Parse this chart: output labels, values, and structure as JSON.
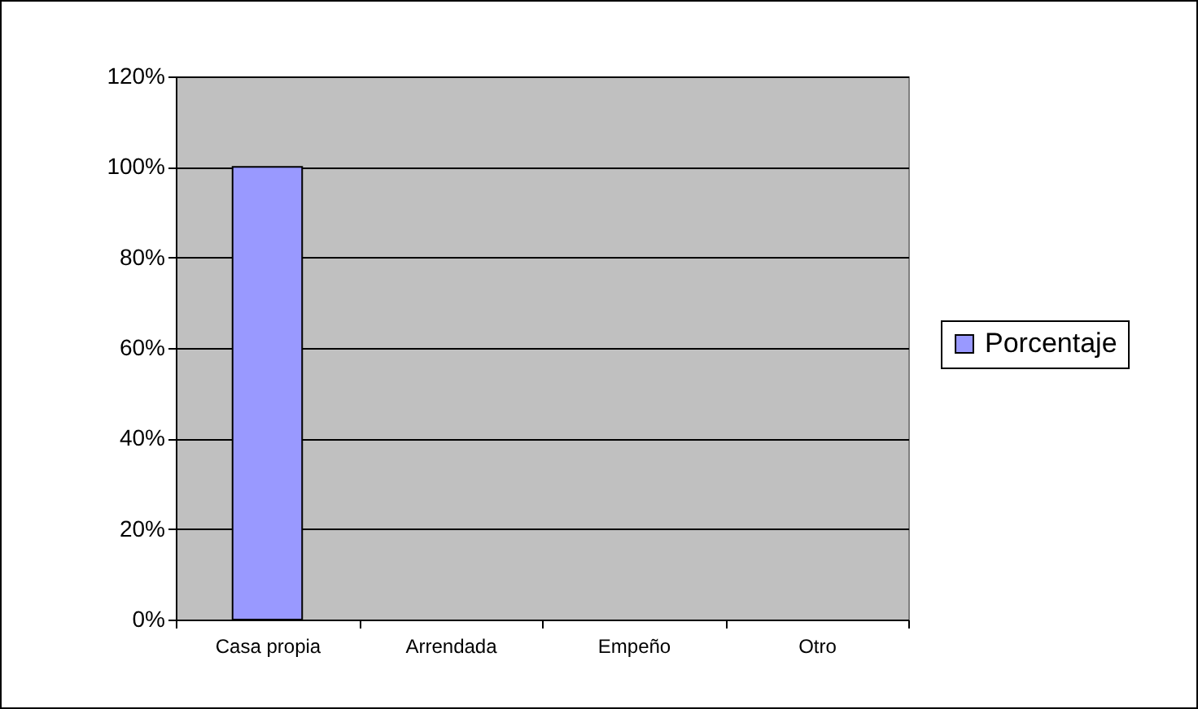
{
  "chart_data": {
    "type": "bar",
    "categories": [
      "Casa propia",
      "Arrendada",
      "Empeño",
      "Otro"
    ],
    "series": [
      {
        "name": "Porcentaje",
        "color": "#9999ff",
        "values": [
          100,
          0,
          0,
          0
        ]
      }
    ],
    "ylim": [
      0,
      120
    ],
    "yticks": [
      {
        "value": 0,
        "label": "0%"
      },
      {
        "value": 20,
        "label": "20%"
      },
      {
        "value": 40,
        "label": "40%"
      },
      {
        "value": 60,
        "label": "60%"
      },
      {
        "value": 80,
        "label": "80%"
      },
      {
        "value": 100,
        "label": "100%"
      },
      {
        "value": 120,
        "label": "120%"
      }
    ],
    "grid": "y",
    "legend": "right"
  }
}
